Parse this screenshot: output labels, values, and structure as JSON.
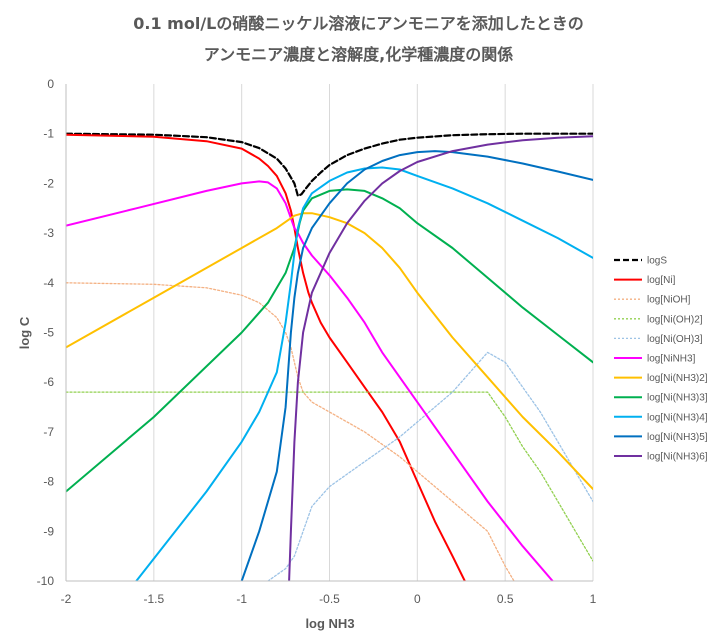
{
  "chart_data": {
    "type": "line",
    "title_line1": "0.1 mol/Lの硝酸ニッケル溶液にアンモニアを添加したときの",
    "title_line2": "アンモニア濃度と溶解度,化学種濃度の関係",
    "xlabel": "log NH3",
    "ylabel": "log C",
    "xlim": [
      -2,
      1
    ],
    "ylim": [
      -10,
      0
    ],
    "xticks": [
      -2,
      -1.5,
      -1,
      -0.5,
      0,
      0.5,
      1
    ],
    "xtick_labels": [
      "-2",
      "-1.5",
      "-1",
      "-0.5",
      "0",
      "0.5",
      "1"
    ],
    "yticks": [
      0,
      -1,
      -2,
      -3,
      -4,
      -5,
      -6,
      -7,
      -8,
      -9,
      -10
    ],
    "ytick_labels": [
      "0",
      "-1",
      "-2",
      "-3",
      "-4",
      "-5",
      "-6",
      "-7",
      "-8",
      "-9",
      "-10"
    ],
    "grid": "vertical",
    "legend_position": "right",
    "series": [
      {
        "name": "logS",
        "color": "#000000",
        "dash": "dashed",
        "x": [
          -2,
          -1.5,
          -1.2,
          -1.0,
          -0.9,
          -0.8,
          -0.75,
          -0.7,
          -0.68,
          -0.66,
          -0.63,
          -0.6,
          -0.55,
          -0.5,
          -0.4,
          -0.3,
          -0.2,
          -0.1,
          0,
          0.2,
          0.4,
          0.6,
          1
        ],
        "y": [
          -1.0,
          -1.02,
          -1.07,
          -1.17,
          -1.29,
          -1.5,
          -1.7,
          -2.0,
          -2.25,
          -2.22,
          -2.08,
          -1.95,
          -1.78,
          -1.63,
          -1.43,
          -1.3,
          -1.2,
          -1.12,
          -1.08,
          -1.03,
          -1.01,
          -1.0,
          -1.0
        ]
      },
      {
        "name": "log[Ni]",
        "color": "#ff0000",
        "dash": "solid",
        "x": [
          -2,
          -1.5,
          -1.2,
          -1.0,
          -0.9,
          -0.85,
          -0.8,
          -0.75,
          -0.72,
          -0.7,
          -0.68,
          -0.65,
          -0.62,
          -0.6,
          -0.55,
          -0.5,
          -0.4,
          -0.3,
          -0.2,
          -0.1,
          0,
          0.1,
          0.2,
          0.27
        ],
        "y": [
          -1.02,
          -1.06,
          -1.15,
          -1.3,
          -1.5,
          -1.65,
          -1.85,
          -2.2,
          -2.55,
          -2.9,
          -3.3,
          -3.8,
          -4.2,
          -4.4,
          -4.8,
          -5.1,
          -5.6,
          -6.1,
          -6.6,
          -7.2,
          -8.0,
          -8.8,
          -9.5,
          -10.0
        ]
      },
      {
        "name": "log[NiOH]",
        "color": "#f4b183",
        "dash": "dotted",
        "x": [
          -2,
          -1.5,
          -1.2,
          -1.0,
          -0.9,
          -0.8,
          -0.75,
          -0.72,
          -0.7,
          -0.68,
          -0.65,
          -0.6,
          -0.5,
          -0.3,
          -0.1,
          0,
          0.1,
          0.2,
          0.3,
          0.4,
          0.5,
          0.55
        ],
        "y": [
          -4.0,
          -4.03,
          -4.1,
          -4.25,
          -4.4,
          -4.7,
          -5.0,
          -5.3,
          -5.6,
          -5.9,
          -6.2,
          -6.4,
          -6.6,
          -7.0,
          -7.5,
          -7.8,
          -8.1,
          -8.4,
          -8.7,
          -9.0,
          -9.7,
          -10.0
        ]
      },
      {
        "name": "log[Ni(OH)2]",
        "color": "#92d050",
        "dash": "dotted",
        "x": [
          -2,
          -1,
          -0.5,
          0,
          0.4,
          0.5,
          0.6,
          0.7,
          0.8,
          0.9,
          1.0
        ],
        "y": [
          -6.2,
          -6.2,
          -6.2,
          -6.2,
          -6.2,
          -6.7,
          -7.3,
          -7.8,
          -8.4,
          -9.0,
          -9.6
        ]
      },
      {
        "name": "log[Ni(OH)3]",
        "color": "#9dc3e6",
        "dash": "dotted",
        "x": [
          -0.85,
          -0.75,
          -0.7,
          -0.65,
          -0.6,
          -0.5,
          -0.3,
          -0.1,
          0,
          0.2,
          0.4,
          0.5,
          0.6,
          0.7,
          0.8,
          0.9,
          1.0
        ],
        "y": [
          -10.0,
          -9.75,
          -9.5,
          -9.0,
          -8.5,
          -8.1,
          -7.6,
          -7.1,
          -6.8,
          -6.2,
          -5.4,
          -5.6,
          -6.1,
          -6.6,
          -7.2,
          -7.8,
          -8.4
        ]
      },
      {
        "name": "log[NiNH3]",
        "color": "#ff00ff",
        "dash": "solid",
        "x": [
          -2,
          -1.6,
          -1.2,
          -1.0,
          -0.9,
          -0.85,
          -0.8,
          -0.75,
          -0.7,
          -0.68,
          -0.65,
          -0.6,
          -0.5,
          -0.4,
          -0.3,
          -0.2,
          0,
          0.2,
          0.4,
          0.6,
          0.77
        ],
        "y": [
          -2.85,
          -2.5,
          -2.15,
          -2.0,
          -1.96,
          -1.98,
          -2.1,
          -2.4,
          -2.9,
          -3.0,
          -3.2,
          -3.45,
          -3.85,
          -4.3,
          -4.8,
          -5.4,
          -6.4,
          -7.4,
          -8.4,
          -9.3,
          -10.0
        ]
      },
      {
        "name": "log[Ni(NH3)2]",
        "color": "#ffc000",
        "dash": "solid",
        "x": [
          -2,
          -1.5,
          -1.0,
          -0.8,
          -0.7,
          -0.65,
          -0.6,
          -0.5,
          -0.4,
          -0.3,
          -0.2,
          -0.1,
          0,
          0.2,
          0.4,
          0.6,
          0.8,
          1.0
        ],
        "y": [
          -5.3,
          -4.3,
          -3.3,
          -2.9,
          -2.65,
          -2.6,
          -2.6,
          -2.68,
          -2.8,
          -3.0,
          -3.3,
          -3.7,
          -4.2,
          -5.1,
          -5.9,
          -6.7,
          -7.4,
          -8.15
        ]
      },
      {
        "name": "log[Ni(NH3)3]",
        "color": "#00b050",
        "dash": "solid",
        "x": [
          -2,
          -1.5,
          -1.0,
          -0.85,
          -0.75,
          -0.7,
          -0.67,
          -0.65,
          -0.6,
          -0.5,
          -0.4,
          -0.3,
          -0.2,
          -0.1,
          0,
          0.2,
          0.4,
          0.6,
          0.8,
          1.0
        ],
        "y": [
          -8.2,
          -6.7,
          -5.0,
          -4.4,
          -3.8,
          -3.3,
          -2.8,
          -2.55,
          -2.3,
          -2.15,
          -2.12,
          -2.15,
          -2.3,
          -2.5,
          -2.8,
          -3.3,
          -3.9,
          -4.5,
          -5.05,
          -5.6
        ]
      },
      {
        "name": "log[Ni(NH3)4]",
        "color": "#00b0f0",
        "dash": "solid",
        "x": [
          -1.6,
          -1.4,
          -1.2,
          -1.0,
          -0.9,
          -0.8,
          -0.75,
          -0.72,
          -0.7,
          -0.68,
          -0.65,
          -0.6,
          -0.5,
          -0.4,
          -0.3,
          -0.2,
          -0.1,
          0,
          0.2,
          0.4,
          0.6,
          0.8,
          1.0
        ],
        "y": [
          -10.0,
          -9.1,
          -8.2,
          -7.2,
          -6.6,
          -5.8,
          -4.8,
          -4.0,
          -3.4,
          -2.9,
          -2.5,
          -2.2,
          -1.95,
          -1.78,
          -1.7,
          -1.68,
          -1.72,
          -1.85,
          -2.1,
          -2.4,
          -2.75,
          -3.1,
          -3.5
        ]
      },
      {
        "name": "log[Ni(NH3)5]",
        "color": "#0070c0",
        "dash": "solid",
        "x": [
          -1.0,
          -0.9,
          -0.8,
          -0.75,
          -0.72,
          -0.7,
          -0.68,
          -0.65,
          -0.6,
          -0.5,
          -0.4,
          -0.3,
          -0.2,
          -0.1,
          0,
          0.1,
          0.2,
          0.4,
          0.6,
          0.8,
          1.0
        ],
        "y": [
          -10.0,
          -9.0,
          -7.8,
          -6.5,
          -5.0,
          -4.3,
          -3.8,
          -3.3,
          -2.9,
          -2.4,
          -2.0,
          -1.72,
          -1.55,
          -1.43,
          -1.37,
          -1.35,
          -1.37,
          -1.46,
          -1.6,
          -1.76,
          -1.93
        ]
      },
      {
        "name": "log[Ni(NH3)6]",
        "color": "#7030a0",
        "dash": "solid",
        "x": [
          -0.73,
          -0.72,
          -0.7,
          -0.68,
          -0.65,
          -0.6,
          -0.5,
          -0.4,
          -0.3,
          -0.2,
          -0.1,
          0,
          0.2,
          0.4,
          0.6,
          0.8,
          1.0
        ],
        "y": [
          -10.0,
          -9.0,
          -7.2,
          -6.0,
          -5.0,
          -4.2,
          -3.4,
          -2.8,
          -2.35,
          -2.0,
          -1.75,
          -1.57,
          -1.35,
          -1.22,
          -1.13,
          -1.08,
          -1.05
        ]
      }
    ]
  }
}
